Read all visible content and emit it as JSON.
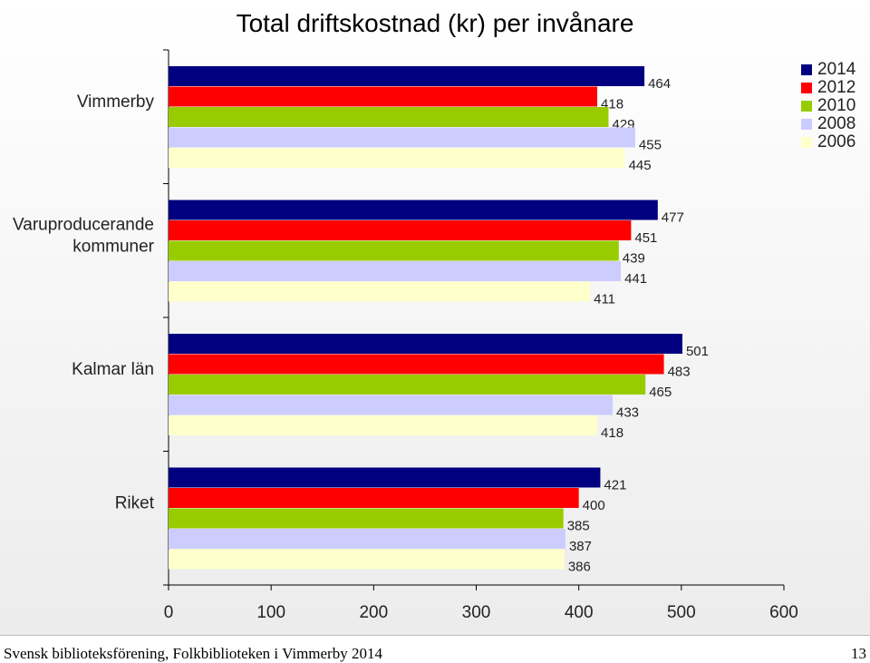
{
  "chart_data": {
    "type": "bar",
    "orientation": "horizontal",
    "title": "Total driftskostnad (kr) per invånare",
    "categories": [
      "Vimmerby",
      "Varuproducerande kommuner",
      "Kalmar län",
      "Riket"
    ],
    "category_lines": [
      [
        "Vimmerby"
      ],
      [
        "Varuproducerande",
        "kommuner"
      ],
      [
        "Kalmar län"
      ],
      [
        "Riket"
      ]
    ],
    "series": [
      {
        "name": "2014",
        "color": "#000080",
        "values": [
          464,
          477,
          501,
          421
        ]
      },
      {
        "name": "2012",
        "color": "#ff0000",
        "values": [
          418,
          451,
          483,
          400
        ]
      },
      {
        "name": "2010",
        "color": "#99cc00",
        "values": [
          429,
          439,
          465,
          385
        ]
      },
      {
        "name": "2008",
        "color": "#ccccff",
        "values": [
          455,
          441,
          433,
          387
        ]
      },
      {
        "name": "2006",
        "color": "#ffffcc",
        "values": [
          445,
          411,
          418,
          386
        ]
      }
    ],
    "xlim": [
      0,
      600
    ],
    "xticks": [
      0,
      100,
      200,
      300,
      400,
      500,
      600
    ],
    "legend_position": "top-right",
    "grid": false
  },
  "footer": {
    "source": "Svensk biblioteksförening, Folkbiblioteken i Vimmerby 2014",
    "page": "13"
  }
}
